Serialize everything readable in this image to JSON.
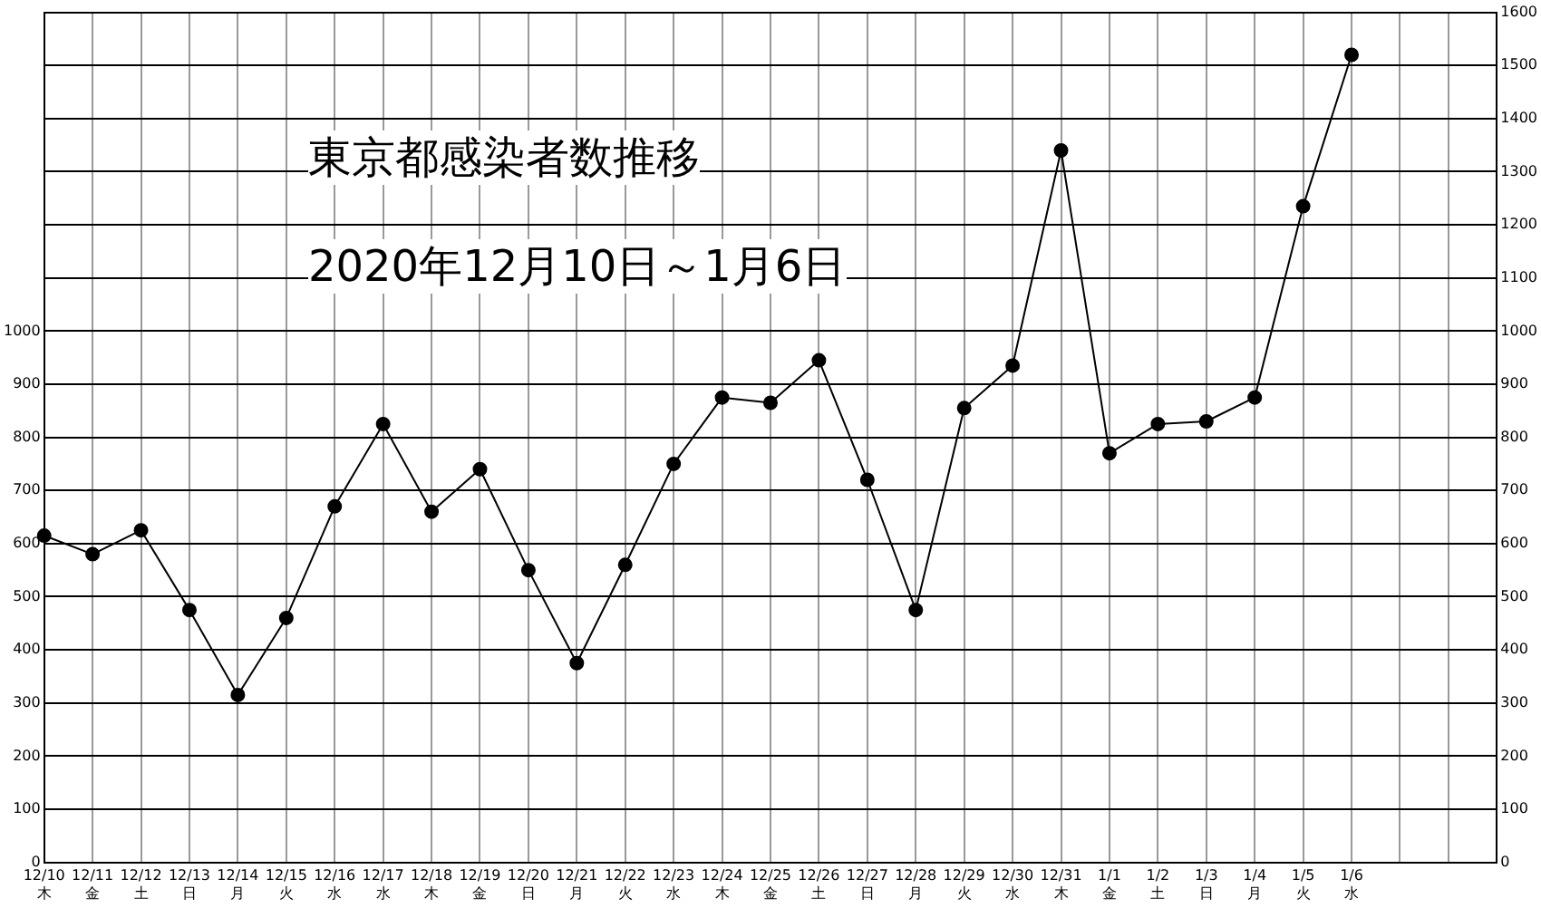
{
  "chart_data": {
    "type": "line",
    "title": "東京都感染者数推移",
    "subtitle": "2020年12月10日～1月6日",
    "categories": [
      "12/10\n木",
      "12/11\n金",
      "12/12\n土",
      "12/13\n日",
      "12/14\n月",
      "12/15\n火",
      "12/16\n水",
      "12/17\n水",
      "12/18\n木",
      "12/19\n金",
      "12/20\n日",
      "12/21\n月",
      "12/22\n火",
      "12/23\n水",
      "12/24\n木",
      "12/25\n金",
      "12/26\n土",
      "12/27\n日",
      "12/28\n月",
      "12/29\n火",
      "12/30\n水",
      "12/31\n木",
      "1/1\n金",
      "1/2\n土",
      "1/3\n日",
      "1/4\n月",
      "1/5\n火",
      "1/6\n水",
      null,
      null,
      null
    ],
    "series": [
      {
        "color": "#000000",
        "values": [
          615,
          580,
          625,
          475,
          315,
          460,
          670,
          825,
          660,
          740,
          550,
          375,
          560,
          750,
          875,
          865,
          945,
          720,
          475,
          855,
          935,
          1340,
          770,
          825,
          830,
          875,
          1235,
          1520,
          null,
          null,
          null
        ]
      }
    ],
    "ylim": [
      0,
      1600
    ],
    "yticks": [
      0,
      100,
      200,
      300,
      400,
      500,
      600,
      700,
      800,
      900,
      1000
    ],
    "y2lim": [
      0,
      1600
    ],
    "y2ticks": [
      0,
      100,
      200,
      300,
      400,
      500,
      600,
      700,
      800,
      900,
      1000,
      1100,
      1200,
      1300,
      1400,
      1500,
      1600
    ],
    "grid": true,
    "marker": "circle",
    "line_style": "solid"
  }
}
